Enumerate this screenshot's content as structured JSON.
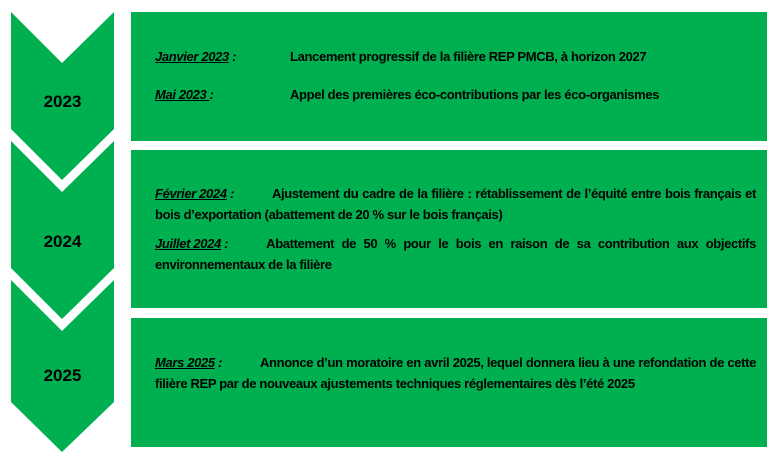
{
  "colors": {
    "green": "#00B050",
    "text": "#000000"
  },
  "timeline": [
    {
      "year": "2023",
      "entries": [
        {
          "date": "Janvier 2023",
          "sep": " :",
          "text": "Lancement progressif de la filière REP PMCB, à horizon 2027"
        },
        {
          "date": "Mai 2023 ",
          "sep": ":",
          "text": "Appel des premières éco-contributions par les éco-organismes"
        }
      ]
    },
    {
      "year": "2024",
      "entries": [
        {
          "date": "Février 2024",
          "sep": " :",
          "text": "Ajustement du cadre de la filière : rétablissement de l’équité entre bois français et bois d’exportation (abattement de 20 % sur le bois français)"
        },
        {
          "date": "Juillet 2024",
          "sep": " :",
          "text": "Abattement de 50 % pour le bois en raison de sa contribution aux objectifs environnementaux de la filière"
        }
      ]
    },
    {
      "year": "2025",
      "entries": [
        {
          "date": "Mars 2025",
          "sep": " :",
          "text": "Annonce d’un moratoire en avril 2025, lequel donnera lieu à une refondation de cette filière REP par de nouveaux ajustements techniques réglementaires dès l’été 2025"
        }
      ]
    }
  ]
}
